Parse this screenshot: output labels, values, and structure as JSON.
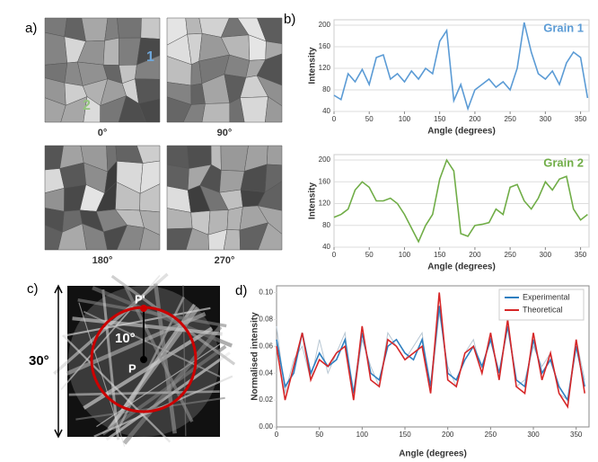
{
  "panels": {
    "a": "a)",
    "b": "b)",
    "c": "c)",
    "d": "d)",
    "angles": [
      "0°",
      "90°",
      "180°",
      "270°"
    ],
    "grain_marks": [
      "1",
      "2"
    ],
    "pattern": {
      "p_prime": "P'",
      "p": "P",
      "tilt": "10°",
      "width": "30°"
    }
  },
  "chart_data": [
    {
      "type": "line",
      "title": "Grain 1",
      "xlabel": "Angle (degrees)",
      "ylabel": "Intensity",
      "x": [
        0,
        10,
        20,
        30,
        40,
        50,
        60,
        70,
        80,
        90,
        100,
        110,
        120,
        130,
        140,
        150,
        160,
        170,
        180,
        190,
        200,
        210,
        220,
        230,
        240,
        250,
        260,
        270,
        280,
        290,
        300,
        310,
        320,
        330,
        340,
        350,
        360
      ],
      "series": [
        {
          "color": "#5b9bd5",
          "values": [
            70,
            62,
            110,
            95,
            118,
            90,
            140,
            145,
            100,
            110,
            95,
            115,
            100,
            120,
            110,
            170,
            190,
            60,
            90,
            45,
            80,
            90,
            100,
            85,
            95,
            80,
            120,
            205,
            150,
            110,
            100,
            115,
            90,
            130,
            150,
            140,
            65
          ]
        }
      ],
      "xlim": [
        0,
        362
      ],
      "xticks": [
        0,
        50,
        100,
        150,
        200,
        250,
        300,
        350
      ],
      "ylim": [
        40,
        210
      ],
      "yticks": [
        40,
        80,
        120,
        160,
        200
      ],
      "grid": true
    },
    {
      "type": "line",
      "title": "Grain 2",
      "xlabel": "Angle (degrees)",
      "ylabel": "Intensity",
      "x": [
        0,
        10,
        20,
        30,
        40,
        50,
        60,
        70,
        80,
        90,
        100,
        110,
        120,
        130,
        140,
        150,
        160,
        170,
        180,
        190,
        200,
        210,
        220,
        230,
        240,
        250,
        260,
        270,
        280,
        290,
        300,
        310,
        320,
        330,
        340,
        350,
        360
      ],
      "series": [
        {
          "color": "#70ad47",
          "values": [
            95,
            100,
            110,
            145,
            160,
            150,
            125,
            125,
            130,
            120,
            100,
            75,
            50,
            80,
            100,
            165,
            200,
            180,
            65,
            60,
            80,
            82,
            85,
            110,
            100,
            150,
            155,
            125,
            110,
            130,
            160,
            145,
            165,
            170,
            110,
            90,
            100
          ]
        }
      ],
      "xlim": [
        0,
        362
      ],
      "xticks": [
        0,
        50,
        100,
        150,
        200,
        250,
        300,
        350
      ],
      "ylim": [
        40,
        210
      ],
      "yticks": [
        40,
        80,
        120,
        160,
        200
      ],
      "grid": true
    },
    {
      "type": "line",
      "xlabel": "Angle (degrees)",
      "ylabel": "Normalised intensity",
      "legend": "top-right",
      "x": [
        0,
        10,
        20,
        30,
        40,
        50,
        60,
        70,
        80,
        90,
        100,
        110,
        120,
        130,
        140,
        150,
        160,
        170,
        180,
        190,
        200,
        210,
        220,
        230,
        240,
        250,
        260,
        270,
        280,
        290,
        300,
        310,
        320,
        330,
        340,
        350,
        360
      ],
      "series": [
        {
          "color": "#b8c7d3",
          "values": [
            0.075,
            0.025,
            0.05,
            0.06,
            0.035,
            0.065,
            0.04,
            0.055,
            0.07,
            0.02,
            0.065,
            0.045,
            0.03,
            0.07,
            0.06,
            0.05,
            0.06,
            0.07,
            0.025,
            0.085,
            0.045,
            0.03,
            0.055,
            0.065,
            0.04,
            0.07,
            0.035,
            0.08,
            0.03,
            0.035,
            0.06,
            0.045,
            0.055,
            0.025,
            0.02,
            0.065,
            0.035
          ]
        },
        {
          "name": "Experimental",
          "color": "#2e7fc0",
          "values": [
            0.065,
            0.03,
            0.04,
            0.07,
            0.04,
            0.055,
            0.045,
            0.05,
            0.065,
            0.025,
            0.07,
            0.04,
            0.035,
            0.06,
            0.065,
            0.055,
            0.05,
            0.065,
            0.03,
            0.09,
            0.04,
            0.035,
            0.05,
            0.06,
            0.045,
            0.065,
            0.04,
            0.075,
            0.035,
            0.03,
            0.065,
            0.04,
            0.05,
            0.03,
            0.02,
            0.06,
            0.03
          ]
        },
        {
          "name": "Theoretical",
          "color": "#d62728",
          "values": [
            0.06,
            0.02,
            0.045,
            0.07,
            0.035,
            0.05,
            0.045,
            0.055,
            0.06,
            0.02,
            0.075,
            0.035,
            0.03,
            0.065,
            0.06,
            0.05,
            0.055,
            0.06,
            0.025,
            0.1,
            0.035,
            0.03,
            0.055,
            0.06,
            0.04,
            0.07,
            0.035,
            0.08,
            0.03,
            0.025,
            0.07,
            0.035,
            0.055,
            0.025,
            0.015,
            0.065,
            0.025
          ]
        }
      ],
      "xlim": [
        0,
        365
      ],
      "xticks": [
        0,
        50,
        100,
        150,
        200,
        250,
        300,
        350
      ],
      "ylim": [
        0,
        0.105
      ],
      "yticks": [
        {
          "value": 0,
          "label": "0.00"
        },
        {
          "value": 0.02,
          "label": "0.02"
        },
        {
          "value": 0.04,
          "label": "0.04"
        },
        {
          "value": 0.06,
          "label": "0.06"
        },
        {
          "value": 0.08,
          "label": "0.08"
        },
        {
          "value": 0.1,
          "label": "0.10"
        }
      ],
      "grid": false
    }
  ]
}
